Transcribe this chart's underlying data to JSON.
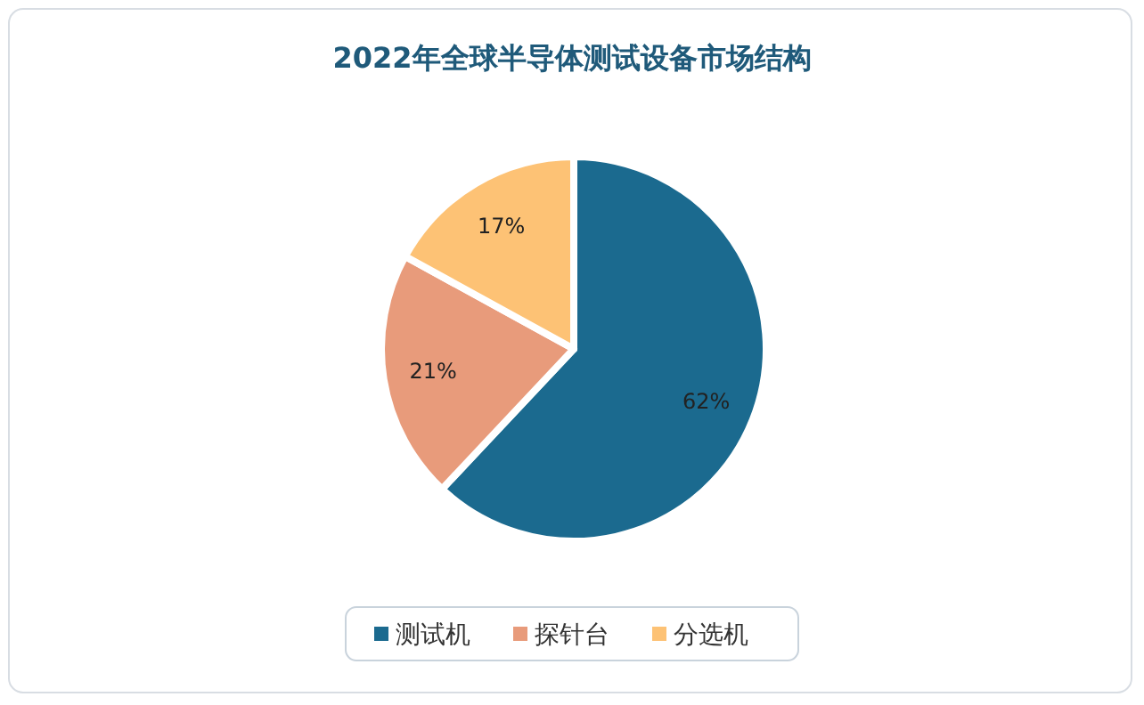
{
  "chart_data": {
    "type": "pie",
    "title": "2022年全球半导体测试设备市场结构",
    "categories": [
      "测试机",
      "探针台",
      "分选机"
    ],
    "values": [
      62,
      21,
      17
    ],
    "colors": [
      "#1b6a8f",
      "#e89b7b",
      "#fdc275"
    ],
    "value_labels": [
      "62%",
      "21%",
      "17%"
    ],
    "legend": "bottom"
  }
}
